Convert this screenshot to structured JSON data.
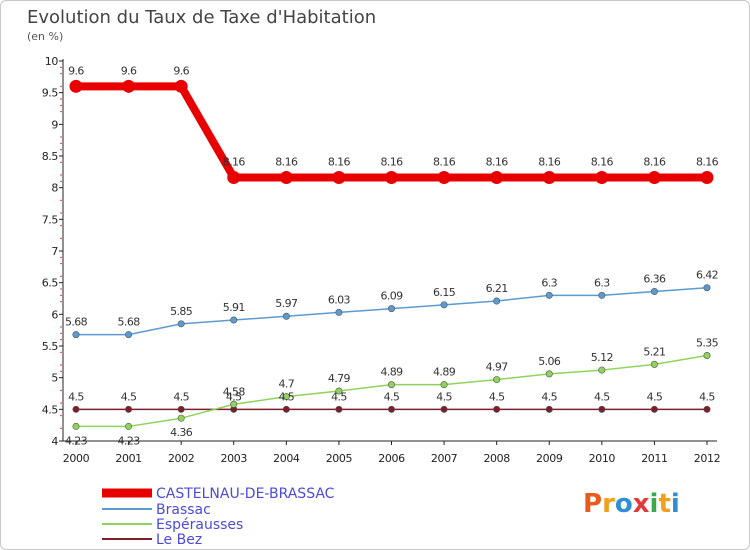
{
  "title": "Evolution du Taux de Taxe d'Habitation",
  "unit": "(en %)",
  "logo": {
    "letters": [
      "P",
      "r",
      "o",
      "x",
      "i",
      "t",
      "i"
    ],
    "colors": [
      "#e85a1e",
      "#f0a11b",
      "#2f8fd0",
      "#e03c3c",
      "#3aa84b",
      "#f0a11b",
      "#2f8fd0"
    ]
  },
  "chart_data": {
    "type": "line",
    "title": "Evolution du Taux de Taxe d'Habitation",
    "ylabel": "(en %)",
    "xlabel": "",
    "ylim": [
      4,
      10
    ],
    "yticks": [
      "4",
      "4.5",
      "5",
      "5.5",
      "6",
      "6.5",
      "7",
      "7.5",
      "8",
      "8.5",
      "9",
      "9.5",
      "10"
    ],
    "categories": [
      "2000",
      "2001",
      "2002",
      "2003",
      "2004",
      "2005",
      "2006",
      "2007",
      "2008",
      "2009",
      "2010",
      "2011",
      "2012"
    ],
    "grid": false,
    "legend_position": "bottom-left",
    "series": [
      {
        "name": "CASTELNAU-DE-BRASSAC",
        "color": "#e80000",
        "emphasis": true,
        "values": [
          9.6,
          9.6,
          9.6,
          8.16,
          8.16,
          8.16,
          8.16,
          8.16,
          8.16,
          8.16,
          8.16,
          8.16,
          8.16
        ],
        "labels": [
          "9.6",
          "9.6",
          "9.6",
          "8.16",
          "8.16",
          "8.16",
          "8.16",
          "8.16",
          "8.16",
          "8.16",
          "8.16",
          "8.16",
          "8.16"
        ]
      },
      {
        "name": "Brassac",
        "color": "#5b9bd0",
        "emphasis": false,
        "values": [
          5.68,
          5.68,
          5.85,
          5.91,
          5.97,
          6.03,
          6.09,
          6.15,
          6.21,
          6.3,
          6.3,
          6.36,
          6.42
        ],
        "labels": [
          "5.68",
          "5.68",
          "5.85",
          "5.91",
          "5.97",
          "6.03",
          "6.09",
          "6.15",
          "6.21",
          "6.3",
          "6.3",
          "6.36",
          "6.42"
        ]
      },
      {
        "name": "Espérausses",
        "color": "#8ed45a",
        "emphasis": false,
        "values": [
          4.23,
          4.23,
          4.36,
          4.58,
          4.7,
          4.79,
          4.89,
          4.89,
          4.97,
          5.06,
          5.12,
          5.21,
          5.35
        ],
        "labels": [
          "4.23",
          "4.23",
          "4.36",
          "4.58",
          "4.7",
          "4.79",
          "4.89",
          "4.89",
          "4.97",
          "5.06",
          "5.12",
          "5.21",
          "5.35"
        ]
      },
      {
        "name": "Le Bez",
        "color": "#7a1f2b",
        "emphasis": false,
        "values": [
          4.5,
          4.5,
          4.5,
          4.5,
          4.5,
          4.5,
          4.5,
          4.5,
          4.5,
          4.5,
          4.5,
          4.5,
          4.5
        ],
        "labels": [
          "4.5",
          "4.5",
          "4.5",
          "4.5",
          "4.5",
          "4.5",
          "4.5",
          "4.5",
          "4.5",
          "4.5",
          "4.5",
          "4.5",
          "4.5"
        ]
      }
    ]
  }
}
